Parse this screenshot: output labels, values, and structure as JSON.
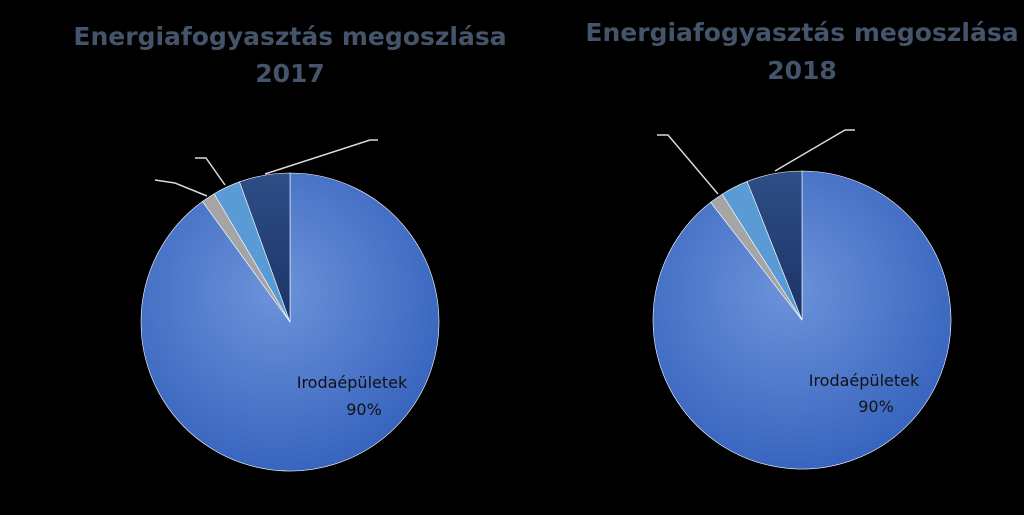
{
  "chart_data": [
    {
      "type": "pie",
      "title": "Energiafogyasztás  megoszlása",
      "subtitle": "2017",
      "slices": [
        {
          "label": "Irodaépületek",
          "value": 90,
          "value_label": "90%",
          "color": "#4472C4"
        },
        {
          "label": "",
          "value": 1.5,
          "color": "#A5A5A5"
        },
        {
          "label": "",
          "value": 3,
          "color": "#5B9BD5"
        },
        {
          "label": "",
          "value": 5.5,
          "color": "#264478"
        }
      ]
    },
    {
      "type": "pie",
      "title": "Energiafogyasztás  megoszlása",
      "subtitle": "2018",
      "slices": [
        {
          "label": "Irodaépületek",
          "value": 89.5,
          "value_label": "90%",
          "color": "#4472C4"
        },
        {
          "label": "",
          "value": 1.5,
          "color": "#A5A5A5"
        },
        {
          "label": "",
          "value": 3,
          "color": "#5B9BD5"
        },
        {
          "label": "",
          "value": 6,
          "color": "#264478"
        }
      ]
    }
  ]
}
